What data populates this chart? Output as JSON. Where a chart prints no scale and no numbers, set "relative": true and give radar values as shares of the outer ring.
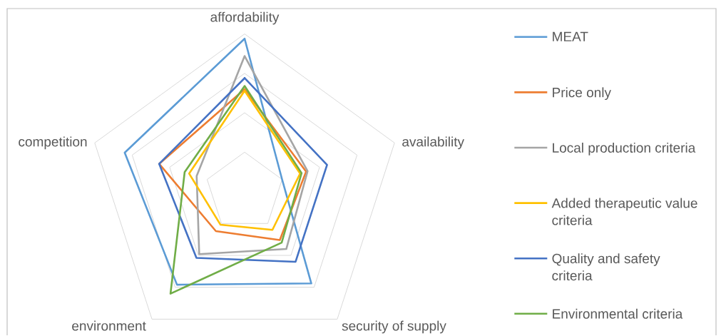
{
  "chart_data": {
    "type": "radar",
    "relative": true,
    "grid": true,
    "legend": "right",
    "categories": [
      "affordability",
      "availability",
      "security of supply",
      "environment",
      "competition"
    ],
    "series": [
      {
        "name": "MEAT",
        "color": "#5B9BD5",
        "values": [
          0.97,
          0.25,
          0.72,
          0.73,
          0.8
        ]
      },
      {
        "name": "Price only",
        "color": "#ED7D31",
        "values": [
          0.65,
          0.41,
          0.38,
          0.31,
          0.57
        ]
      },
      {
        "name": "Local production criteria",
        "color": "#A5A5A5",
        "values": [
          0.86,
          0.42,
          0.45,
          0.49,
          0.32
        ]
      },
      {
        "name": "Added therapeutic value criteria",
        "color": "#FFC000",
        "values": [
          0.64,
          0.37,
          0.3,
          0.26,
          0.37
        ]
      },
      {
        "name": "Quality and safety criteria",
        "color": "#4472C4",
        "values": [
          0.72,
          0.55,
          0.55,
          0.52,
          0.57
        ]
      },
      {
        "name": "Environmental criteria",
        "color": "#70AD47",
        "values": [
          0.67,
          0.38,
          0.4,
          0.8,
          0.4
        ]
      }
    ]
  }
}
